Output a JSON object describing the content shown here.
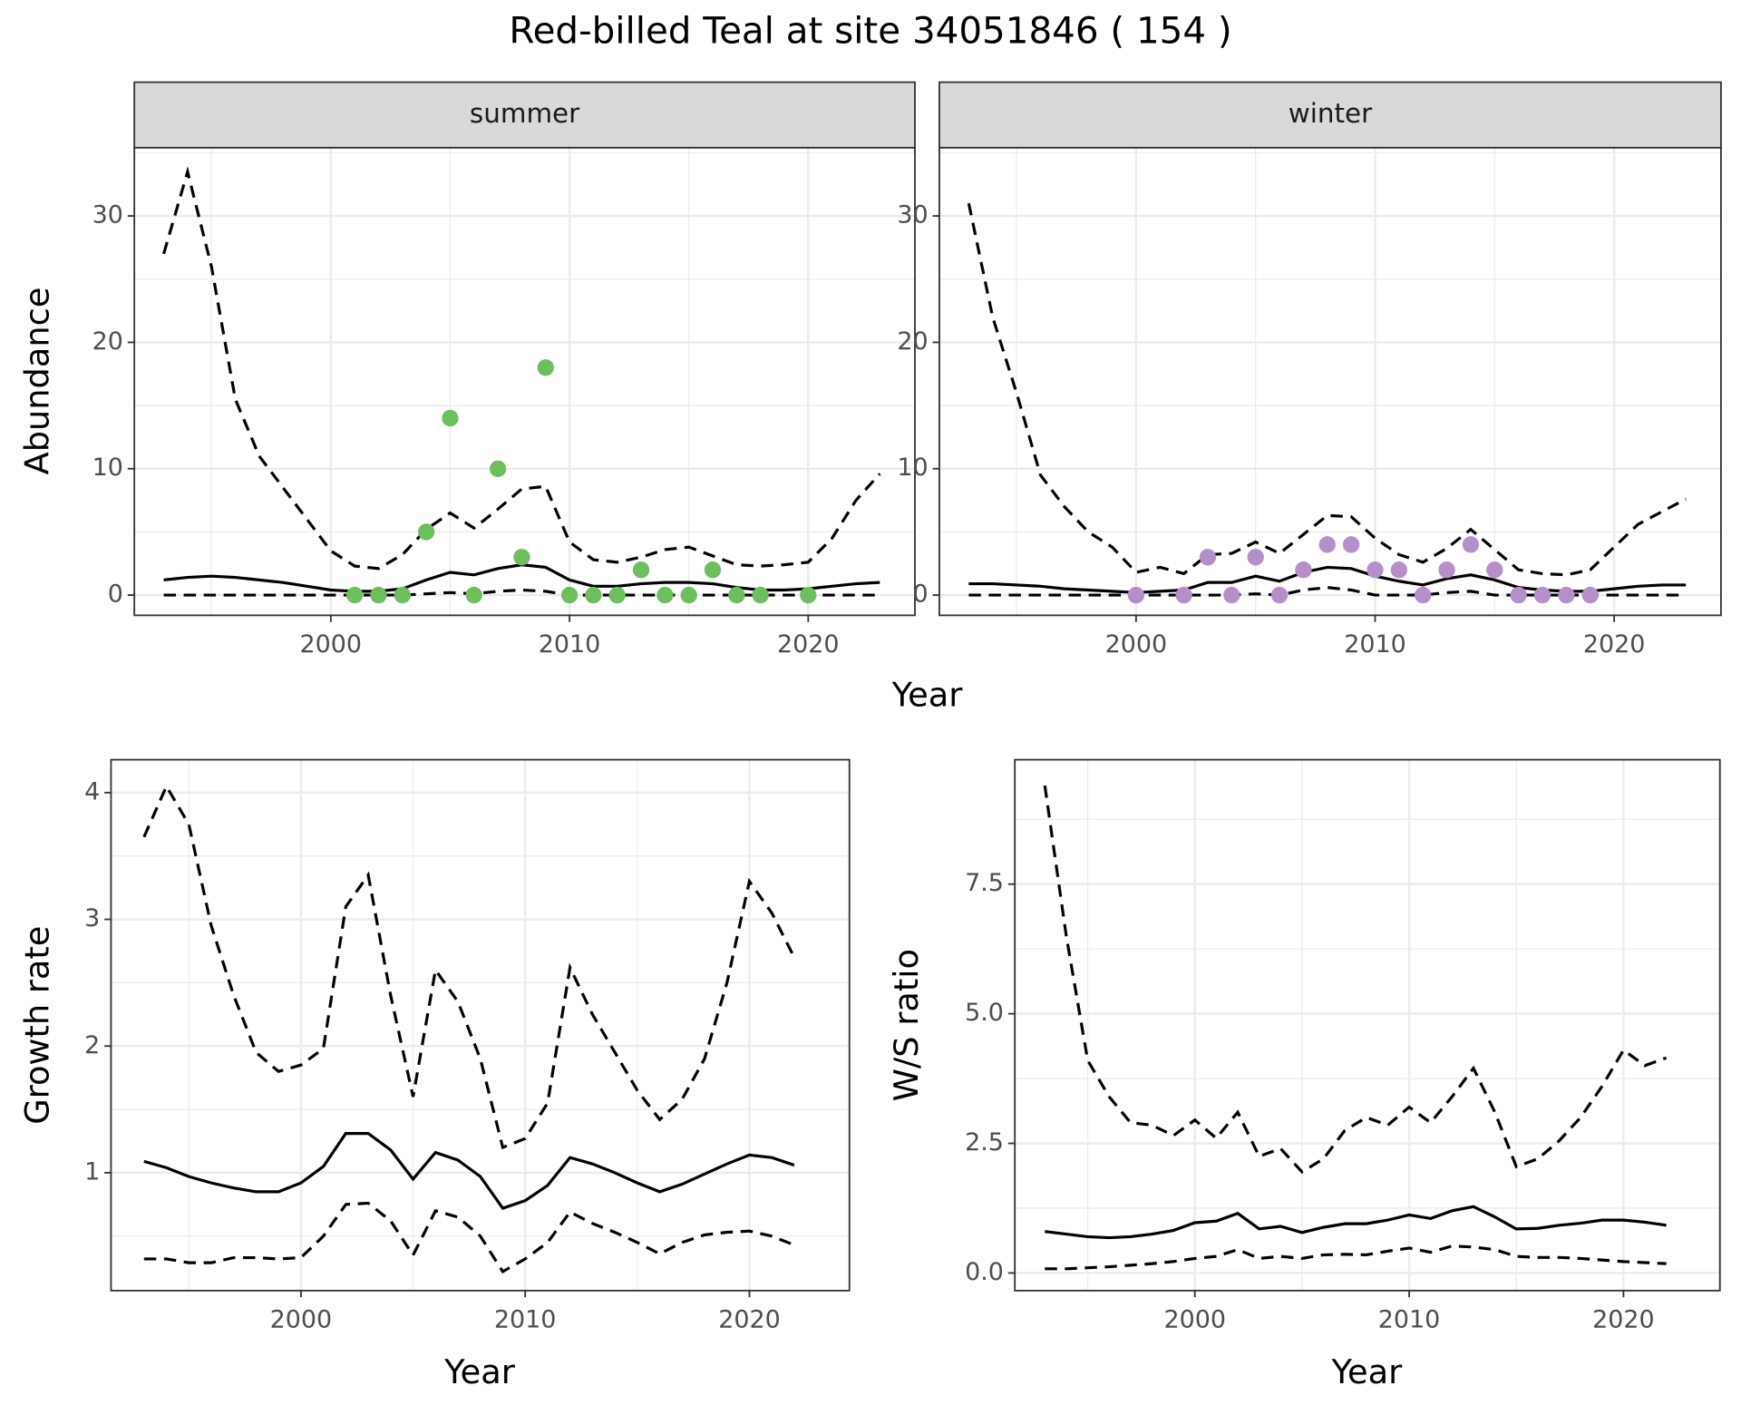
{
  "title": "Red-billed Teal at site 34051846 ( 154 )",
  "chart_data": [
    {
      "type": "line",
      "panel_title": "summer",
      "y_label": "Abundance",
      "x_label": "Year",
      "xlim": [
        1991.77,
        2024.47
      ],
      "ylim": [
        -1.6,
        35.4
      ],
      "xticks": [
        2000,
        2010,
        2020
      ],
      "yticks": [
        0,
        10,
        20,
        30
      ],
      "x": [
        1993,
        1994,
        1995,
        1996,
        1997,
        1998,
        1999,
        2000,
        2001,
        2002,
        2003,
        2004,
        2005,
        2006,
        2007,
        2008,
        2009,
        2010,
        2011,
        2012,
        2013,
        2014,
        2015,
        2016,
        2017,
        2018,
        2019,
        2020,
        2021,
        2022,
        2023
      ],
      "series": [
        {
          "line": "solid",
          "color": "#000000",
          "values": [
            1.2,
            1.4,
            1.5,
            1.4,
            1.2,
            1.0,
            0.7,
            0.4,
            0.3,
            0.3,
            0.5,
            1.2,
            1.8,
            1.6,
            2.1,
            2.4,
            2.2,
            1.2,
            0.7,
            0.7,
            0.9,
            1.0,
            1.0,
            0.9,
            0.6,
            0.4,
            0.4,
            0.5,
            0.7,
            0.9,
            1.0
          ]
        },
        {
          "line": "dashed",
          "color": "#000000",
          "values": [
            27,
            33.5,
            26,
            15.5,
            11,
            8.5,
            6,
            3.5,
            2.3,
            2.1,
            3.2,
            5.2,
            6.5,
            5.3,
            6.8,
            8.4,
            8.6,
            4.2,
            2.8,
            2.6,
            3,
            3.6,
            3.8,
            3.1,
            2.4,
            2.3,
            2.4,
            2.6,
            4.5,
            7.5,
            9.6
          ]
        },
        {
          "line": "dashed",
          "color": "#000000",
          "values": [
            0,
            0,
            0,
            0,
            0,
            0,
            0,
            0,
            0,
            0,
            0,
            0.1,
            0.2,
            0.1,
            0.3,
            0.4,
            0.3,
            0,
            0,
            0,
            0,
            0,
            0,
            0,
            0,
            0,
            0,
            0,
            0,
            0,
            0
          ]
        }
      ],
      "points": {
        "color": "#6dbf5e",
        "x": [
          2001,
          2002,
          2003,
          2004,
          2005,
          2006,
          2007,
          2008,
          2009,
          2010,
          2011,
          2012,
          2013,
          2014,
          2015,
          2016,
          2017,
          2018,
          2020
        ],
        "values": [
          0,
          0,
          0,
          5,
          14,
          0,
          10,
          3,
          18,
          0,
          0,
          0,
          2,
          0,
          0,
          2,
          0,
          0,
          0
        ]
      }
    },
    {
      "type": "line",
      "panel_title": "winter",
      "xlim": [
        1991.77,
        2024.47
      ],
      "ylim": [
        -1.6,
        35.4
      ],
      "xticks": [
        2000,
        2010,
        2020
      ],
      "yticks": [
        0,
        10,
        20,
        30
      ],
      "x": [
        1993,
        1994,
        1995,
        1996,
        1997,
        1998,
        1999,
        2000,
        2001,
        2002,
        2003,
        2004,
        2005,
        2006,
        2007,
        2008,
        2009,
        2010,
        2011,
        2012,
        2013,
        2014,
        2015,
        2016,
        2017,
        2018,
        2019,
        2020,
        2021,
        2022,
        2023
      ],
      "series": [
        {
          "line": "solid",
          "color": "#000000",
          "values": [
            0.9,
            0.9,
            0.8,
            0.7,
            0.5,
            0.4,
            0.3,
            0.2,
            0.3,
            0.4,
            1.0,
            1.0,
            1.5,
            1.1,
            1.8,
            2.2,
            2.1,
            1.5,
            1.1,
            0.8,
            1.3,
            1.6,
            1.2,
            0.6,
            0.4,
            0.3,
            0.3,
            0.5,
            0.7,
            0.8,
            0.8
          ]
        },
        {
          "line": "dashed",
          "color": "#000000",
          "values": [
            31,
            22,
            16,
            9.5,
            7,
            5,
            3.8,
            1.8,
            2.2,
            1.7,
            3.2,
            3.3,
            4.2,
            3.3,
            4.8,
            6.3,
            6.2,
            4.5,
            3.2,
            2.6,
            3.7,
            5.2,
            3.6,
            2.0,
            1.7,
            1.6,
            2.0,
            3.8,
            5.6,
            6.6,
            7.6
          ]
        },
        {
          "line": "dashed",
          "color": "#000000",
          "values": [
            0,
            0,
            0,
            0,
            0,
            0,
            0,
            0,
            0,
            0,
            0,
            0,
            0.1,
            0,
            0.4,
            0.6,
            0.4,
            0,
            0,
            0,
            0.2,
            0.3,
            0,
            0,
            0,
            0,
            0,
            0,
            0,
            0,
            0
          ]
        }
      ],
      "points": {
        "color": "#b48fc9",
        "x": [
          2000,
          2002,
          2003,
          2004,
          2005,
          2006,
          2007,
          2008,
          2009,
          2010,
          2011,
          2012,
          2013,
          2014,
          2015,
          2016,
          2017,
          2018,
          2019
        ],
        "values": [
          0,
          0,
          3,
          0,
          3,
          0,
          2,
          4,
          4,
          2,
          2,
          0,
          2,
          4,
          2,
          0,
          0,
          0,
          0
        ]
      }
    },
    {
      "type": "line",
      "y_label": "Growth rate",
      "x_label": "Year",
      "xlim": [
        1991.53,
        2024.46
      ],
      "ylim": [
        0.07,
        4.26
      ],
      "xticks": [
        2000,
        2010,
        2020
      ],
      "yticks": [
        1,
        2,
        3,
        4
      ],
      "x": [
        1993,
        1994,
        1995,
        1996,
        1997,
        1998,
        1999,
        2000,
        2001,
        2002,
        2003,
        2004,
        2005,
        2006,
        2007,
        2008,
        2009,
        2010,
        2011,
        2012,
        2013,
        2014,
        2015,
        2016,
        2017,
        2018,
        2019,
        2020,
        2021,
        2022
      ],
      "series": [
        {
          "line": "solid",
          "color": "#000000",
          "values": [
            1.09,
            1.04,
            0.97,
            0.92,
            0.88,
            0.85,
            0.85,
            0.92,
            1.05,
            1.31,
            1.31,
            1.18,
            0.95,
            1.16,
            1.1,
            0.97,
            0.72,
            0.78,
            0.9,
            1.12,
            1.07,
            1.0,
            0.92,
            0.85,
            0.91,
            0.99,
            1.07,
            1.14,
            1.12,
            1.06
          ]
        },
        {
          "line": "dashed",
          "color": "#000000",
          "values": [
            3.65,
            4.05,
            3.75,
            2.95,
            2.4,
            1.95,
            1.8,
            1.85,
            1.98,
            3.1,
            3.35,
            2.4,
            1.6,
            2.6,
            2.35,
            1.9,
            1.2,
            1.27,
            1.55,
            2.62,
            2.25,
            1.95,
            1.65,
            1.42,
            1.58,
            1.9,
            2.5,
            3.3,
            3.05,
            2.7
          ]
        },
        {
          "line": "dashed",
          "color": "#000000",
          "values": [
            0.32,
            0.32,
            0.29,
            0.29,
            0.33,
            0.33,
            0.32,
            0.33,
            0.5,
            0.75,
            0.76,
            0.62,
            0.35,
            0.7,
            0.65,
            0.5,
            0.22,
            0.32,
            0.45,
            0.69,
            0.6,
            0.53,
            0.45,
            0.36,
            0.45,
            0.51,
            0.53,
            0.54,
            0.5,
            0.43
          ]
        }
      ]
    },
    {
      "type": "line",
      "y_label": "W/S ratio",
      "x_label": "Year",
      "xlim": [
        1991.6,
        2024.5
      ],
      "ylim": [
        -0.34,
        9.9
      ],
      "xticks": [
        2000,
        2010,
        2020
      ],
      "yticks": [
        {
          "value": 0,
          "label": "0.0"
        },
        2.5,
        {
          "value": 5,
          "label": "5.0"
        },
        7.5
      ],
      "x": [
        1993,
        1994,
        1995,
        1996,
        1997,
        1998,
        1999,
        2000,
        2001,
        2002,
        2003,
        2004,
        2005,
        2006,
        2007,
        2008,
        2009,
        2010,
        2011,
        2012,
        2013,
        2014,
        2015,
        2016,
        2017,
        2018,
        2019,
        2020,
        2021,
        2022
      ],
      "series": [
        {
          "line": "solid",
          "color": "#000000",
          "values": [
            0.8,
            0.75,
            0.7,
            0.68,
            0.7,
            0.75,
            0.82,
            0.97,
            1.0,
            1.15,
            0.85,
            0.9,
            0.78,
            0.88,
            0.95,
            0.95,
            1.02,
            1.12,
            1.05,
            1.2,
            1.28,
            1.08,
            0.85,
            0.86,
            0.92,
            0.96,
            1.02,
            1.02,
            0.98,
            0.92
          ]
        },
        {
          "line": "dashed",
          "color": "#000000",
          "values": [
            9.4,
            6.5,
            4.1,
            3.4,
            2.9,
            2.85,
            2.65,
            2.95,
            2.6,
            3.1,
            2.25,
            2.4,
            1.95,
            2.2,
            2.75,
            3.0,
            2.85,
            3.2,
            2.9,
            3.4,
            3.95,
            3.1,
            2.05,
            2.2,
            2.55,
            3.0,
            3.6,
            4.3,
            4.0,
            4.15
          ]
        },
        {
          "line": "dashed",
          "color": "#000000",
          "values": [
            0.08,
            0.08,
            0.1,
            0.12,
            0.15,
            0.18,
            0.22,
            0.28,
            0.32,
            0.45,
            0.28,
            0.32,
            0.28,
            0.35,
            0.36,
            0.35,
            0.42,
            0.48,
            0.4,
            0.52,
            0.5,
            0.45,
            0.32,
            0.3,
            0.3,
            0.28,
            0.25,
            0.22,
            0.2,
            0.18
          ]
        }
      ]
    }
  ]
}
